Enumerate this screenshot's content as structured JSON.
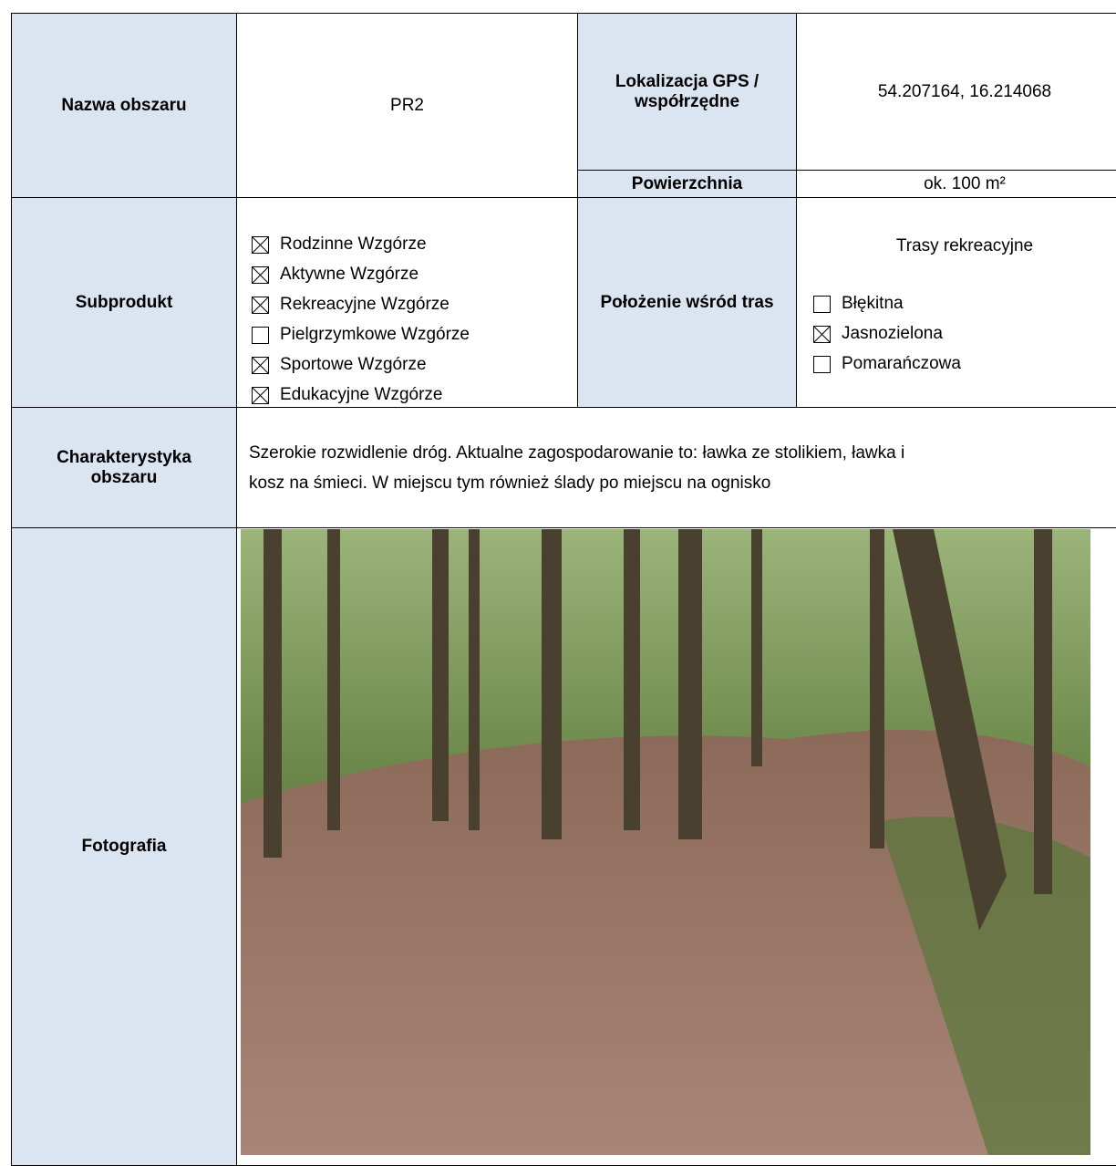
{
  "area_name": {
    "label": "Nazwa obszaru",
    "value": "PR2"
  },
  "gps": {
    "label": "Lokalizacja GPS / współrzędne",
    "value": "54.207164, 16.214068"
  },
  "surface": {
    "label": "Powierzchnia",
    "value": "ok. 100 m²"
  },
  "subproduct": {
    "label": "Subprodukt",
    "items": [
      {
        "text": "Rodzinne Wzgórze",
        "checked": true
      },
      {
        "text": "Aktywne Wzgórze",
        "checked": true
      },
      {
        "text": "Rekreacyjne Wzgórze",
        "checked": true
      },
      {
        "text": "Pielgrzymkowe Wzgórze",
        "checked": false
      },
      {
        "text": "Sportowe Wzgórze",
        "checked": true
      },
      {
        "text": "Edukacyjne Wzgórze",
        "checked": true
      }
    ]
  },
  "position": {
    "label": "Położenie wśród tras",
    "heading": "Trasy rekreacyjne",
    "items": [
      {
        "text": "Błękitna",
        "checked": false
      },
      {
        "text": "Jasnozielona",
        "checked": true
      },
      {
        "text": "Pomarańczowa",
        "checked": false
      }
    ]
  },
  "description": {
    "label": "Charakterystyka obszaru",
    "lines": [
      "Szerokie rozwidlenie dróg. Aktualne zagospodarowanie to: ławka ze stolikiem, ławka i",
      "kosz na śmieci. W miejscu tym również ślady po miejscu na ognisko"
    ]
  },
  "photo": {
    "label": "Fotografia"
  }
}
